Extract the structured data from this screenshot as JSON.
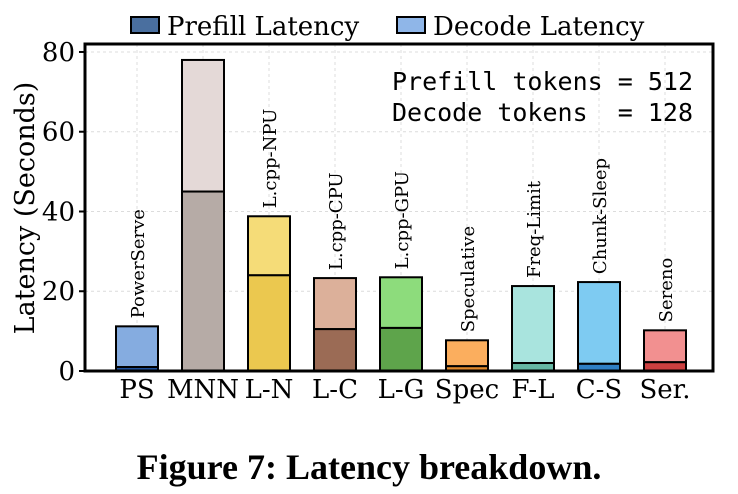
{
  "chart_data": {
    "type": "bar",
    "stacked": true,
    "categories": [
      "PS",
      "MNN",
      "L-N",
      "L-C",
      "L-G",
      "Spec",
      "F-L",
      "C-S",
      "Ser."
    ],
    "bar_labels": [
      "PowerServe",
      "",
      "L.cpp-NPU",
      "L.cpp-CPU",
      "L.cpp-GPU",
      "Speculative",
      "Freq-Limit",
      "Chunk-Sleep",
      "Sereno"
    ],
    "series": [
      {
        "name": "Prefill Latency",
        "values": [
          1.0,
          45.0,
          24.0,
          10.5,
          10.8,
          1.2,
          2.0,
          1.8,
          2.2
        ]
      },
      {
        "name": "Decode Latency",
        "values": [
          10.2,
          33.0,
          14.8,
          12.8,
          12.7,
          6.5,
          19.3,
          20.5,
          8.0
        ]
      }
    ],
    "prefill_colors": [
      "#1f4f9a",
      "#b6aba6",
      "#ebc84f",
      "#9b6b55",
      "#5ea44b",
      "#e0892d",
      "#66b8a4",
      "#2f7fc4",
      "#cc4040"
    ],
    "decode_colors": [
      "#85ace0",
      "#e4d9d7",
      "#f5dc78",
      "#dcb09a",
      "#8ddc7c",
      "#fbae5e",
      "#a9e4de",
      "#7ecbf2",
      "#f29090"
    ],
    "legend_colors": {
      "prefill": "#4a6f9f",
      "decode": "#8fb6e8"
    },
    "ylabel": "Latency (Seconds)",
    "xlabel": "",
    "yticks": [
      0,
      20,
      40,
      60,
      80
    ],
    "ylim": [
      0,
      82
    ],
    "grid": true,
    "legend_position": "top",
    "annotation": [
      "Prefill tokens = 512",
      "Decode tokens  = 128"
    ]
  },
  "caption": "Figure 7: Latency breakdown."
}
